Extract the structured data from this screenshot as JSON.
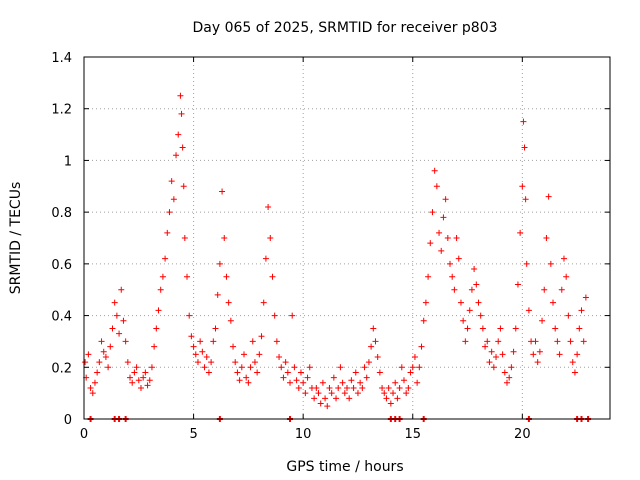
{
  "colors": {
    "series": "#ff0000",
    "grid": "#a0a0a0",
    "axis": "#000000",
    "background": "#ffffff"
  },
  "chart_data": {
    "type": "scatter",
    "title": "Day 065 of 2025, SRMTID for receiver p803",
    "xlabel": "GPS time / hours",
    "ylabel": "SRMTID / TECUs",
    "xlim": [
      0,
      24
    ],
    "ylim": [
      0,
      1.4
    ],
    "x_ticks": [
      0,
      5,
      10,
      15,
      20
    ],
    "x_tick_labels": [
      "0",
      "5",
      "10",
      "15",
      "20"
    ],
    "y_ticks": [
      0,
      0.2,
      0.4,
      0.6,
      0.8,
      1.0,
      1.2,
      1.4
    ],
    "y_tick_labels": [
      "0",
      "0.2",
      "0.4",
      "0.6",
      "0.8",
      "1",
      "1.2",
      "1.4"
    ],
    "grid": true,
    "marker": "+",
    "series": [
      {
        "name": "SRMTID",
        "points": [
          [
            0.05,
            0.22
          ],
          [
            0.1,
            0.16
          ],
          [
            0.2,
            0.25
          ],
          [
            0.3,
            0.12
          ],
          [
            0.4,
            0.1
          ],
          [
            0.5,
            0.14
          ],
          [
            0.6,
            0.18
          ],
          [
            0.7,
            0.22
          ],
          [
            0.8,
            0.3
          ],
          [
            0.9,
            0.26
          ],
          [
            1.0,
            0.24
          ],
          [
            1.1,
            0.2
          ],
          [
            1.2,
            0.28
          ],
          [
            1.3,
            0.35
          ],
          [
            1.4,
            0.45
          ],
          [
            1.5,
            0.4
          ],
          [
            1.6,
            0.33
          ],
          [
            1.7,
            0.5
          ],
          [
            1.8,
            0.38
          ],
          [
            1.9,
            0.3
          ],
          [
            2.0,
            0.22
          ],
          [
            2.1,
            0.16
          ],
          [
            2.2,
            0.14
          ],
          [
            2.3,
            0.18
          ],
          [
            2.4,
            0.2
          ],
          [
            2.5,
            0.15
          ],
          [
            2.6,
            0.12
          ],
          [
            2.7,
            0.16
          ],
          [
            2.8,
            0.18
          ],
          [
            2.9,
            0.13
          ],
          [
            3.0,
            0.15
          ],
          [
            3.1,
            0.2
          ],
          [
            3.2,
            0.28
          ],
          [
            3.3,
            0.35
          ],
          [
            3.4,
            0.42
          ],
          [
            3.5,
            0.5
          ],
          [
            3.6,
            0.55
          ],
          [
            3.7,
            0.62
          ],
          [
            3.8,
            0.72
          ],
          [
            3.9,
            0.8
          ],
          [
            4.0,
            0.92
          ],
          [
            4.1,
            0.85
          ],
          [
            4.2,
            1.02
          ],
          [
            4.3,
            1.1
          ],
          [
            4.4,
            1.25
          ],
          [
            4.45,
            1.18
          ],
          [
            4.5,
            1.05
          ],
          [
            4.55,
            0.9
          ],
          [
            4.6,
            0.7
          ],
          [
            4.7,
            0.55
          ],
          [
            4.8,
            0.4
          ],
          [
            4.9,
            0.32
          ],
          [
            5.0,
            0.28
          ],
          [
            5.1,
            0.25
          ],
          [
            5.2,
            0.22
          ],
          [
            5.3,
            0.3
          ],
          [
            5.4,
            0.26
          ],
          [
            5.5,
            0.2
          ],
          [
            5.6,
            0.24
          ],
          [
            5.7,
            0.18
          ],
          [
            5.8,
            0.22
          ],
          [
            5.9,
            0.3
          ],
          [
            6.0,
            0.35
          ],
          [
            6.1,
            0.48
          ],
          [
            6.2,
            0.6
          ],
          [
            6.3,
            0.88
          ],
          [
            6.4,
            0.7
          ],
          [
            6.5,
            0.55
          ],
          [
            6.6,
            0.45
          ],
          [
            6.7,
            0.38
          ],
          [
            6.8,
            0.28
          ],
          [
            6.9,
            0.22
          ],
          [
            7.0,
            0.18
          ],
          [
            7.1,
            0.15
          ],
          [
            7.2,
            0.2
          ],
          [
            7.3,
            0.25
          ],
          [
            7.4,
            0.16
          ],
          [
            7.5,
            0.14
          ],
          [
            7.6,
            0.2
          ],
          [
            7.7,
            0.3
          ],
          [
            7.8,
            0.22
          ],
          [
            7.9,
            0.18
          ],
          [
            8.0,
            0.25
          ],
          [
            8.1,
            0.32
          ],
          [
            8.2,
            0.45
          ],
          [
            8.3,
            0.62
          ],
          [
            8.4,
            0.82
          ],
          [
            8.5,
            0.7
          ],
          [
            8.6,
            0.55
          ],
          [
            8.7,
            0.4
          ],
          [
            8.8,
            0.3
          ],
          [
            8.9,
            0.24
          ],
          [
            9.0,
            0.2
          ],
          [
            9.1,
            0.16
          ],
          [
            9.2,
            0.22
          ],
          [
            9.3,
            0.18
          ],
          [
            9.4,
            0.14
          ],
          [
            9.5,
            0.4
          ],
          [
            9.6,
            0.2
          ],
          [
            9.7,
            0.15
          ],
          [
            9.8,
            0.12
          ],
          [
            9.9,
            0.18
          ],
          [
            10.0,
            0.14
          ],
          [
            10.1,
            0.1
          ],
          [
            10.2,
            0.16
          ],
          [
            10.3,
            0.2
          ],
          [
            10.4,
            0.12
          ],
          [
            10.5,
            0.08
          ],
          [
            10.6,
            0.12
          ],
          [
            10.7,
            0.1
          ],
          [
            10.8,
            0.06
          ],
          [
            10.9,
            0.14
          ],
          [
            11.0,
            0.08
          ],
          [
            11.1,
            0.05
          ],
          [
            11.2,
            0.12
          ],
          [
            11.3,
            0.1
          ],
          [
            11.4,
            0.16
          ],
          [
            11.5,
            0.08
          ],
          [
            11.6,
            0.12
          ],
          [
            11.7,
            0.2
          ],
          [
            11.8,
            0.14
          ],
          [
            11.9,
            0.1
          ],
          [
            12.0,
            0.12
          ],
          [
            12.1,
            0.08
          ],
          [
            12.2,
            0.15
          ],
          [
            12.3,
            0.12
          ],
          [
            12.4,
            0.18
          ],
          [
            12.5,
            0.1
          ],
          [
            12.6,
            0.14
          ],
          [
            12.7,
            0.12
          ],
          [
            12.8,
            0.2
          ],
          [
            12.9,
            0.16
          ],
          [
            13.0,
            0.22
          ],
          [
            13.1,
            0.28
          ],
          [
            13.2,
            0.35
          ],
          [
            13.3,
            0.3
          ],
          [
            13.4,
            0.24
          ],
          [
            13.5,
            0.18
          ],
          [
            13.6,
            0.12
          ],
          [
            13.7,
            0.1
          ],
          [
            13.8,
            0.08
          ],
          [
            13.9,
            0.12
          ],
          [
            14.0,
            0.06
          ],
          [
            14.1,
            0.1
          ],
          [
            14.2,
            0.14
          ],
          [
            14.3,
            0.08
          ],
          [
            14.4,
            0.12
          ],
          [
            14.5,
            0.2
          ],
          [
            14.6,
            0.15
          ],
          [
            14.7,
            0.1
          ],
          [
            14.8,
            0.12
          ],
          [
            14.9,
            0.18
          ],
          [
            15.0,
            0.2
          ],
          [
            15.1,
            0.24
          ],
          [
            15.2,
            0.14
          ],
          [
            15.3,
            0.2
          ],
          [
            15.4,
            0.28
          ],
          [
            15.5,
            0.38
          ],
          [
            15.6,
            0.45
          ],
          [
            15.7,
            0.55
          ],
          [
            15.8,
            0.68
          ],
          [
            15.9,
            0.8
          ],
          [
            16.0,
            0.96
          ],
          [
            16.1,
            0.9
          ],
          [
            16.2,
            0.72
          ],
          [
            16.3,
            0.65
          ],
          [
            16.4,
            0.78
          ],
          [
            16.5,
            0.85
          ],
          [
            16.6,
            0.7
          ],
          [
            16.7,
            0.6
          ],
          [
            16.8,
            0.55
          ],
          [
            16.9,
            0.5
          ],
          [
            17.0,
            0.7
          ],
          [
            17.1,
            0.62
          ],
          [
            17.2,
            0.45
          ],
          [
            17.3,
            0.38
          ],
          [
            17.4,
            0.3
          ],
          [
            17.5,
            0.35
          ],
          [
            17.6,
            0.42
          ],
          [
            17.7,
            0.5
          ],
          [
            17.8,
            0.58
          ],
          [
            17.9,
            0.52
          ],
          [
            18.0,
            0.45
          ],
          [
            18.1,
            0.4
          ],
          [
            18.2,
            0.35
          ],
          [
            18.3,
            0.28
          ],
          [
            18.4,
            0.3
          ],
          [
            18.5,
            0.22
          ],
          [
            18.6,
            0.26
          ],
          [
            18.7,
            0.2
          ],
          [
            18.8,
            0.24
          ],
          [
            18.9,
            0.3
          ],
          [
            19.0,
            0.35
          ],
          [
            19.1,
            0.25
          ],
          [
            19.2,
            0.18
          ],
          [
            19.3,
            0.14
          ],
          [
            19.4,
            0.16
          ],
          [
            19.5,
            0.2
          ],
          [
            19.6,
            0.26
          ],
          [
            19.7,
            0.35
          ],
          [
            19.8,
            0.52
          ],
          [
            19.9,
            0.72
          ],
          [
            20.0,
            0.9
          ],
          [
            20.05,
            1.15
          ],
          [
            20.1,
            1.05
          ],
          [
            20.15,
            0.85
          ],
          [
            20.2,
            0.6
          ],
          [
            20.3,
            0.42
          ],
          [
            20.4,
            0.3
          ],
          [
            20.5,
            0.25
          ],
          [
            20.6,
            0.3
          ],
          [
            20.7,
            0.22
          ],
          [
            20.8,
            0.26
          ],
          [
            20.9,
            0.38
          ],
          [
            21.0,
            0.5
          ],
          [
            21.1,
            0.7
          ],
          [
            21.2,
            0.86
          ],
          [
            21.3,
            0.6
          ],
          [
            21.4,
            0.45
          ],
          [
            21.5,
            0.35
          ],
          [
            21.6,
            0.3
          ],
          [
            21.7,
            0.25
          ],
          [
            21.8,
            0.5
          ],
          [
            21.9,
            0.62
          ],
          [
            22.0,
            0.55
          ],
          [
            22.1,
            0.4
          ],
          [
            22.2,
            0.3
          ],
          [
            22.3,
            0.22
          ],
          [
            22.4,
            0.18
          ],
          [
            22.5,
            0.25
          ],
          [
            22.6,
            0.35
          ],
          [
            22.7,
            0.42
          ],
          [
            22.8,
            0.3
          ],
          [
            22.9,
            0.47
          ]
        ]
      }
    ],
    "zero_markers_x": [
      0.3,
      1.4,
      1.6,
      1.9,
      6.2,
      9.4,
      14.0,
      14.2,
      14.4,
      15.5,
      20.3,
      22.5,
      22.7,
      23.0
    ]
  }
}
